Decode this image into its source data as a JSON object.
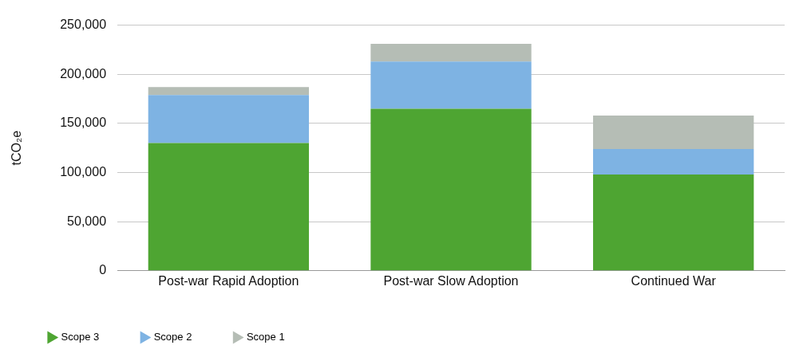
{
  "chart_data": {
    "type": "bar",
    "ylabel": "tCO₂e",
    "categories": [
      "Post-war Rapid Adoption",
      "Post-war Slow Adoption",
      "Continued War"
    ],
    "stacked": true,
    "series": [
      {
        "name": "Scope 3",
        "color": "#4ea532",
        "values": [
          130000,
          165000,
          98000
        ]
      },
      {
        "name": "Scope 2",
        "color": "#7eb3e3",
        "values": [
          49000,
          48000,
          26000
        ]
      },
      {
        "name": "Scope 1",
        "color": "#b5bdb5",
        "values": [
          8000,
          18000,
          34000
        ]
      }
    ],
    "ylim": [
      0,
      250000
    ],
    "yticks": [
      0,
      {
        "value": 50000,
        "label": "50,000"
      },
      {
        "value": 100000,
        "label": "100,000"
      },
      {
        "value": 150000,
        "label": "150,000"
      },
      {
        "value": 200000,
        "label": "200,000"
      },
      {
        "value": 250000,
        "label": "250,000"
      }
    ],
    "grid": "y",
    "legend": "bottom left"
  }
}
